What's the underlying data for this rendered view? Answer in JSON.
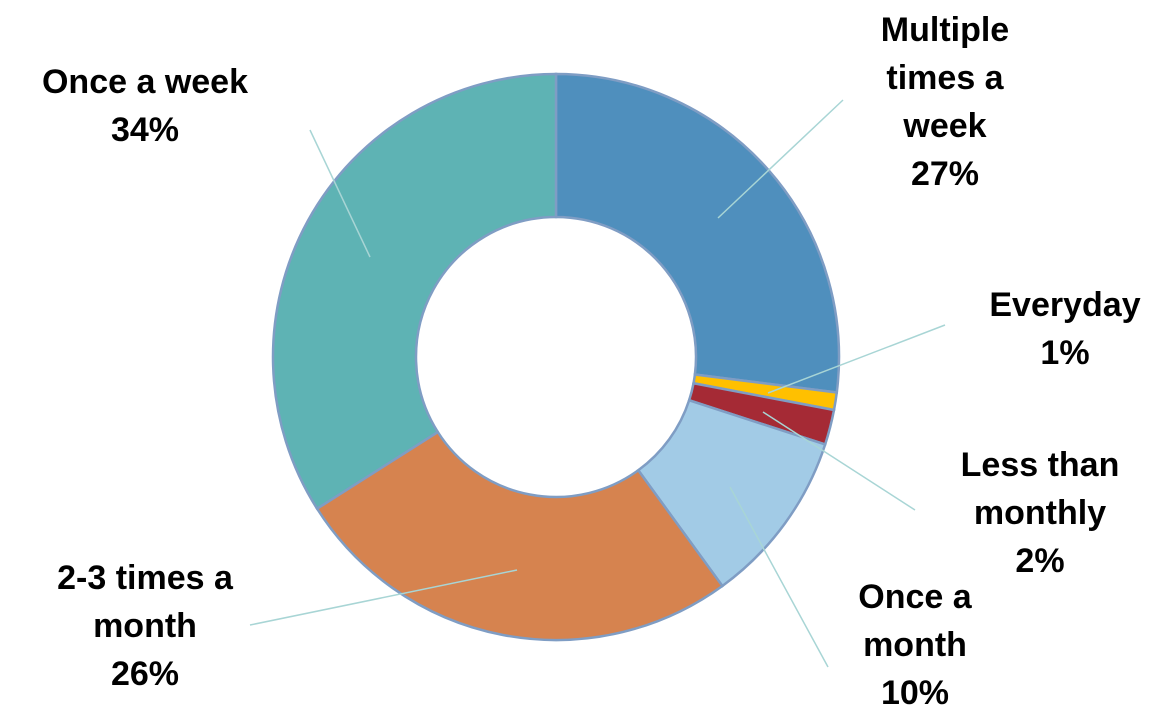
{
  "chart_data": {
    "type": "donut",
    "categories": [
      "Multiple times a week",
      "Everyday",
      "Less than monthly",
      "Once a month",
      "2-3 times a month",
      "Once a week"
    ],
    "values": [
      27,
      1,
      2,
      10,
      26,
      34
    ],
    "value_labels": [
      "27%",
      "1%",
      "2%",
      "10%",
      "26%",
      "34%"
    ],
    "colors": [
      "#4f8fbd",
      "#ffc000",
      "#a52a35",
      "#a2cbe6",
      "#d6834f",
      "#5eb3b4"
    ]
  }
}
